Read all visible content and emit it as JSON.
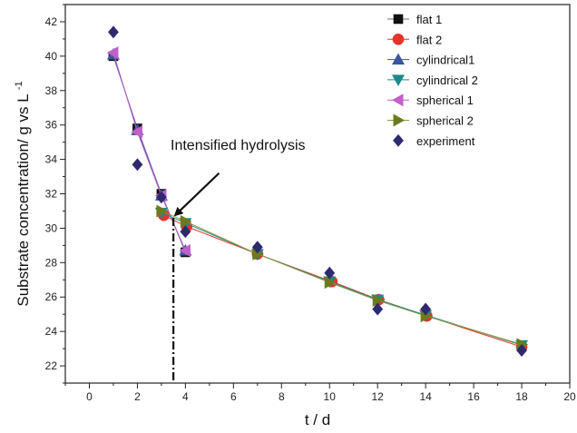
{
  "chart_data": {
    "type": "line",
    "xlabel": "t / d",
    "ylabel": "Substrate concentration/ g vs L",
    "ylabel_superscript": "-1",
    "xlim": [
      -1,
      20
    ],
    "ylim": [
      21,
      43
    ],
    "x_ticks": [
      0,
      2,
      4,
      6,
      8,
      10,
      12,
      14,
      16,
      18,
      20
    ],
    "y_ticks": [
      22,
      24,
      26,
      28,
      30,
      32,
      34,
      36,
      38,
      40,
      42
    ],
    "grid": false,
    "legend_position": "top-right",
    "series": [
      {
        "name": "flat 1",
        "marker": "square",
        "color": "#111111",
        "line_color": "#6a6a9a",
        "x": [
          1,
          2,
          3,
          4
        ],
        "y": [
          40.0,
          35.8,
          32.0,
          28.6
        ]
      },
      {
        "name": "flat 2",
        "marker": "circle",
        "color": "#e8322a",
        "line_color": "#e8322a",
        "x": [
          3.1,
          4.05,
          7,
          10.1,
          12.05,
          14.05,
          18
        ],
        "y": [
          30.75,
          30.1,
          28.5,
          26.9,
          25.85,
          24.9,
          23.1
        ]
      },
      {
        "name": "cylindrical1",
        "marker": "triangle-up",
        "color": "#3a55a4",
        "line_color": "#3a55a4",
        "x": [
          1,
          2,
          3,
          4
        ],
        "y": [
          40.1,
          35.7,
          31.9,
          28.7
        ]
      },
      {
        "name": "cylindrical 2",
        "marker": "triangle-down",
        "color": "#1a8a8a",
        "line_color": "#1a8a8a",
        "x": [
          3,
          4,
          7,
          10,
          12,
          14,
          18
        ],
        "y": [
          30.9,
          30.3,
          28.5,
          26.9,
          25.85,
          24.95,
          23.2
        ]
      },
      {
        "name": "spherical 1",
        "marker": "triangle-left",
        "color": "#c060c8",
        "line_color": "#c060c8",
        "x": [
          1,
          2,
          3,
          4
        ],
        "y": [
          40.2,
          35.6,
          31.9,
          28.7
        ]
      },
      {
        "name": "spherical 2",
        "marker": "triangle-right",
        "color": "#6b7a1e",
        "line_color": "#8a9a40",
        "x": [
          3,
          4,
          7,
          10,
          12,
          14,
          18
        ],
        "y": [
          31.0,
          30.4,
          28.5,
          26.85,
          25.8,
          24.9,
          23.25
        ]
      },
      {
        "name": "experiment",
        "marker": "diamond",
        "color": "#2e2a6e",
        "line_color": "",
        "x": [
          1,
          2,
          3,
          4,
          7,
          10,
          12,
          14,
          18
        ],
        "y": [
          41.4,
          33.7,
          31.8,
          29.8,
          28.9,
          27.4,
          25.3,
          25.3,
          22.9
        ]
      }
    ],
    "annotation": {
      "text": "Intensified hydrolysis",
      "arrow_from": [
        5.4,
        33.2
      ],
      "arrow_to": [
        3.5,
        30.6
      ],
      "vline_x": 3.5,
      "vline_from_y": 30.6,
      "vline_to_y": 21
    }
  }
}
